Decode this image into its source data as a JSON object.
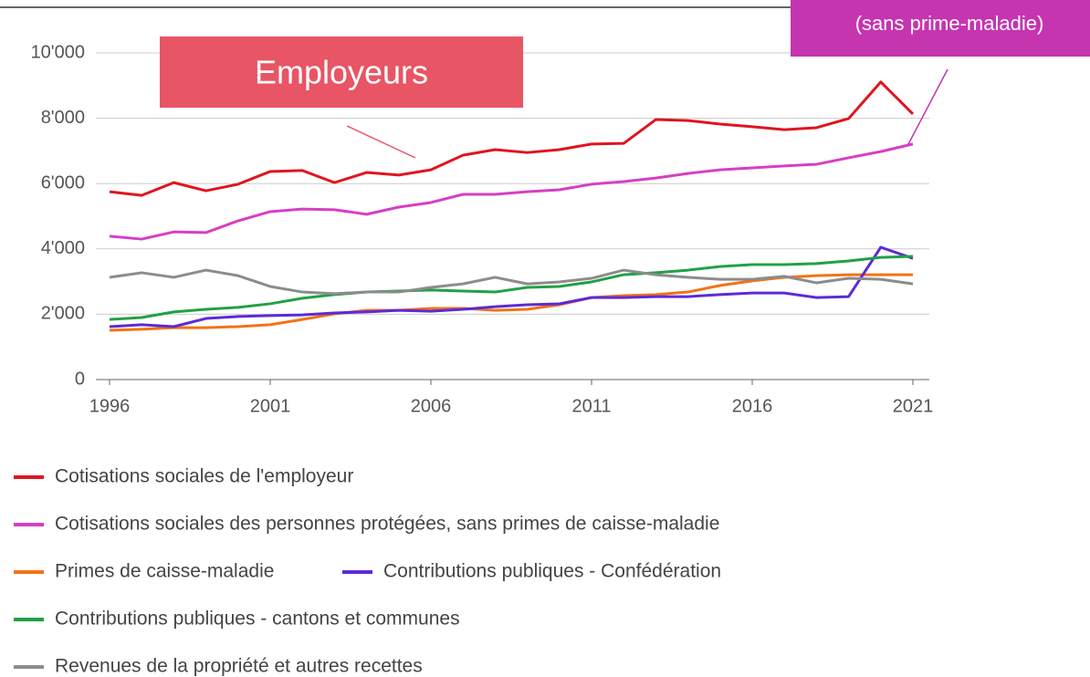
{
  "chart_data": {
    "type": "line",
    "annotations": [
      "Employeurs",
      "(sans prime-maladie)"
    ],
    "x": [
      1996,
      1997,
      1998,
      1999,
      2000,
      2001,
      2002,
      2003,
      2004,
      2005,
      2006,
      2007,
      2008,
      2009,
      2010,
      2011,
      2012,
      2013,
      2014,
      2015,
      2016,
      2017,
      2018,
      2019,
      2020,
      2021
    ],
    "xlim": [
      1996,
      2021
    ],
    "xticks": [
      1996,
      2001,
      2006,
      2011,
      2016,
      2021
    ],
    "ylim": [
      0,
      10000
    ],
    "yticks": [
      0,
      {
        "value": 2000,
        "label": "2'000"
      },
      {
        "value": 4000,
        "label": "4'000"
      },
      {
        "value": 6000,
        "label": "6'000"
      },
      {
        "value": 8000,
        "label": "8'000"
      },
      {
        "value": 10000,
        "label": "10'000"
      }
    ],
    "grid": true,
    "series": [
      {
        "name": "Cotisations sociales de l'employeur",
        "color": "#e0151f",
        "values": [
          5750,
          5640,
          6030,
          5780,
          5980,
          6370,
          6400,
          6030,
          6340,
          6260,
          6420,
          6870,
          7040,
          6950,
          7040,
          7210,
          7230,
          7960,
          7930,
          7820,
          7740,
          7650,
          7710,
          7990,
          9110,
          8130
        ]
      },
      {
        "name": "Cotisations sociales des personnes protégées, sans primes de caisse-maladie",
        "color": "#d63fc4",
        "values": [
          4390,
          4300,
          4520,
          4500,
          4860,
          5140,
          5220,
          5200,
          5060,
          5280,
          5420,
          5670,
          5670,
          5750,
          5810,
          5980,
          6060,
          6170,
          6310,
          6420,
          6480,
          6540,
          6590,
          6790,
          6980,
          7210
        ]
      },
      {
        "name": "Primes de caisse-maladie",
        "color": "#f47216",
        "values": [
          1510,
          1540,
          1590,
          1590,
          1620,
          1680,
          1840,
          2010,
          2120,
          2120,
          2180,
          2180,
          2120,
          2150,
          2290,
          2510,
          2570,
          2600,
          2680,
          2880,
          3020,
          3130,
          3180,
          3210,
          3210,
          3210
        ]
      },
      {
        "name": "Contributions publiques - Confédération",
        "color": "#5b2bd8",
        "values": [
          1620,
          1680,
          1620,
          1870,
          1930,
          1960,
          1980,
          2040,
          2070,
          2120,
          2090,
          2150,
          2230,
          2290,
          2320,
          2510,
          2510,
          2540,
          2540,
          2600,
          2650,
          2650,
          2510,
          2540,
          4050,
          3710
        ]
      },
      {
        "name": "Contributions publiques - cantons et communes",
        "color": "#22a046",
        "values": [
          1840,
          1900,
          2070,
          2150,
          2210,
          2320,
          2490,
          2600,
          2680,
          2710,
          2740,
          2710,
          2680,
          2820,
          2850,
          2990,
          3210,
          3270,
          3350,
          3460,
          3520,
          3520,
          3550,
          3630,
          3740,
          3770
        ]
      },
      {
        "name": "Revenues de la propriété et autres recettes",
        "color": "#8c8c8c",
        "values": [
          3130,
          3270,
          3130,
          3350,
          3180,
          2850,
          2680,
          2630,
          2680,
          2680,
          2820,
          2930,
          3130,
          2930,
          2990,
          3100,
          3350,
          3210,
          3130,
          3070,
          3070,
          3160,
          2960,
          3100,
          3070,
          2930
        ]
      }
    ]
  }
}
